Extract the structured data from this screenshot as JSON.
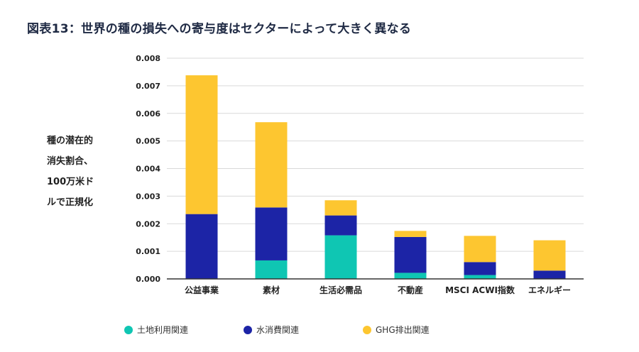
{
  "title": "図表13：世界の種の損失への寄与度はセクターによって大きく異なる",
  "colors": {
    "land": "#0fc6b3",
    "water": "#1c24a6",
    "ghg": "#fdc630",
    "grid": "#d9d9d9",
    "axis": "#333333"
  },
  "chart_data": {
    "type": "bar",
    "stacked": true,
    "title": "図表13：世界の種の損失への寄与度はセクターによって大きく異なる",
    "ylabel_lines": [
      "種の潜在的",
      "消失割合、",
      "100万米ド",
      "ルで正規化"
    ],
    "ylim": [
      0,
      0.008
    ],
    "yticks": [
      "0.000",
      "0.001",
      "0.002",
      "0.003",
      "0.004",
      "0.005",
      "0.006",
      "0.007",
      "0.008"
    ],
    "categories": [
      "公益事業",
      "素材",
      "生活必需品",
      "不動産",
      "MSCI ACWI指数",
      "エネルギー"
    ],
    "series": [
      {
        "name": "土地利用関連",
        "color_key": "land",
        "values": [
          0.0,
          0.00067,
          0.00158,
          0.00022,
          0.00014,
          0.0
        ]
      },
      {
        "name": "水消費関連",
        "color_key": "water",
        "values": [
          0.00235,
          0.00192,
          0.00072,
          0.0013,
          0.00047,
          0.0003
        ]
      },
      {
        "name": "GHG排出関連",
        "color_key": "ghg",
        "values": [
          0.00503,
          0.00309,
          0.00055,
          0.00022,
          0.00095,
          0.0011
        ]
      }
    ],
    "grid": true,
    "legend_position": "bottom"
  }
}
